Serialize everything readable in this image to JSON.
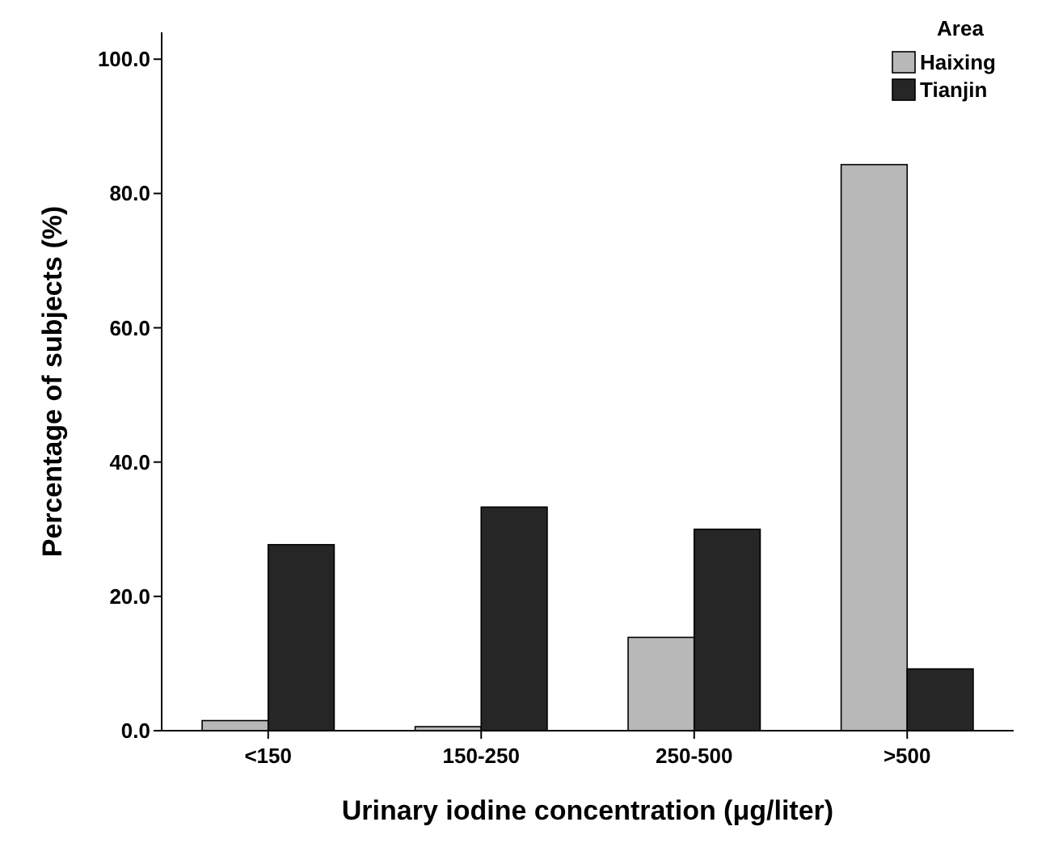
{
  "chart_data": {
    "type": "bar",
    "xlabel": "Urinary iodine concentration (μg/liter)",
    "ylabel": "Percentage of subjects (%)",
    "legend_title": "Area",
    "categories": [
      "<150",
      "150-250",
      "250-500",
      ">500"
    ],
    "series": [
      {
        "name": "Haixing",
        "color": "#b8b8b8",
        "values": [
          1.5,
          0.6,
          13.9,
          84.3
        ]
      },
      {
        "name": "Tianjin",
        "color": "#262626",
        "values": [
          27.7,
          33.3,
          30.0,
          9.2
        ]
      }
    ],
    "ylim": [
      0,
      104
    ],
    "yticks": [
      {
        "value": 0,
        "label": "0.0"
      },
      {
        "value": 20,
        "label": "20.0"
      },
      {
        "value": 40,
        "label": "40.0"
      },
      {
        "value": 60,
        "label": "60.0"
      },
      {
        "value": 80,
        "label": "80.0"
      },
      {
        "value": 100,
        "label": "100.0"
      }
    ],
    "grid": false,
    "legend": "top right"
  }
}
